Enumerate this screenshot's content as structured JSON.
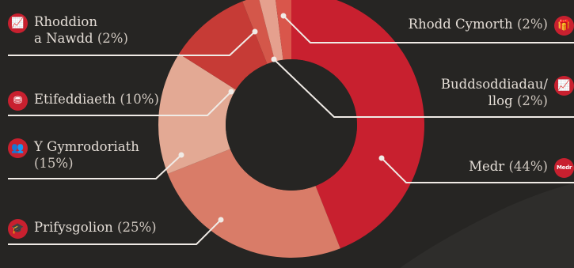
{
  "chart_data": {
    "type": "pie",
    "donut": true,
    "slices": [
      {
        "label": "Medr",
        "value": 44,
        "color": "#c8202f"
      },
      {
        "label": "Prifysgolion",
        "value": 25,
        "color": "#d97c68"
      },
      {
        "label": "Y Gymrodoriath",
        "value": 15,
        "color": "#e3a994"
      },
      {
        "label": "Etifeddiaeth",
        "value": 10,
        "color": "#c63b36"
      },
      {
        "label": "Rhoddion a Nawdd",
        "value": 2,
        "color": "#d4574a"
      },
      {
        "label": "Buddsoddiadau/ llog",
        "value": 2,
        "color": "#e5a08e"
      },
      {
        "label": "Rhodd Cymorth",
        "value": 2,
        "color": "#d9564b"
      }
    ]
  },
  "labels": {
    "rhoddion": {
      "line1": "Rhoddion",
      "line2": "a Nawdd",
      "pct": "(2%)",
      "icon": "chart-line-icon"
    },
    "etifeddiaeth": {
      "text": "Etifeddiaeth",
      "pct": "(10%)",
      "icon": "coins-icon"
    },
    "gymrodoriath": {
      "line1": "Y Gymrodoriath",
      "pct": "(15%)",
      "icon": "people-icon"
    },
    "prifysgolion": {
      "text": "Prifysgolion",
      "pct": "(25%)",
      "icon": "graduation-cap-icon"
    },
    "rhodd_cymorth": {
      "text": "Rhodd Cymorth",
      "pct": "(2%)",
      "icon": "gift-icon"
    },
    "buddsoddiadau": {
      "line1": "Buddsoddiadau/",
      "line2": "llog",
      "pct": "(2%)",
      "icon": "chart-line-icon"
    },
    "medr": {
      "text": "Medr",
      "pct": "(44%)",
      "icon": "medr-logo-icon",
      "icon_text": "Medr"
    }
  },
  "colors": {
    "background": "#262523",
    "icon": "#c8202f",
    "leader_line": "#f0ebe6"
  }
}
